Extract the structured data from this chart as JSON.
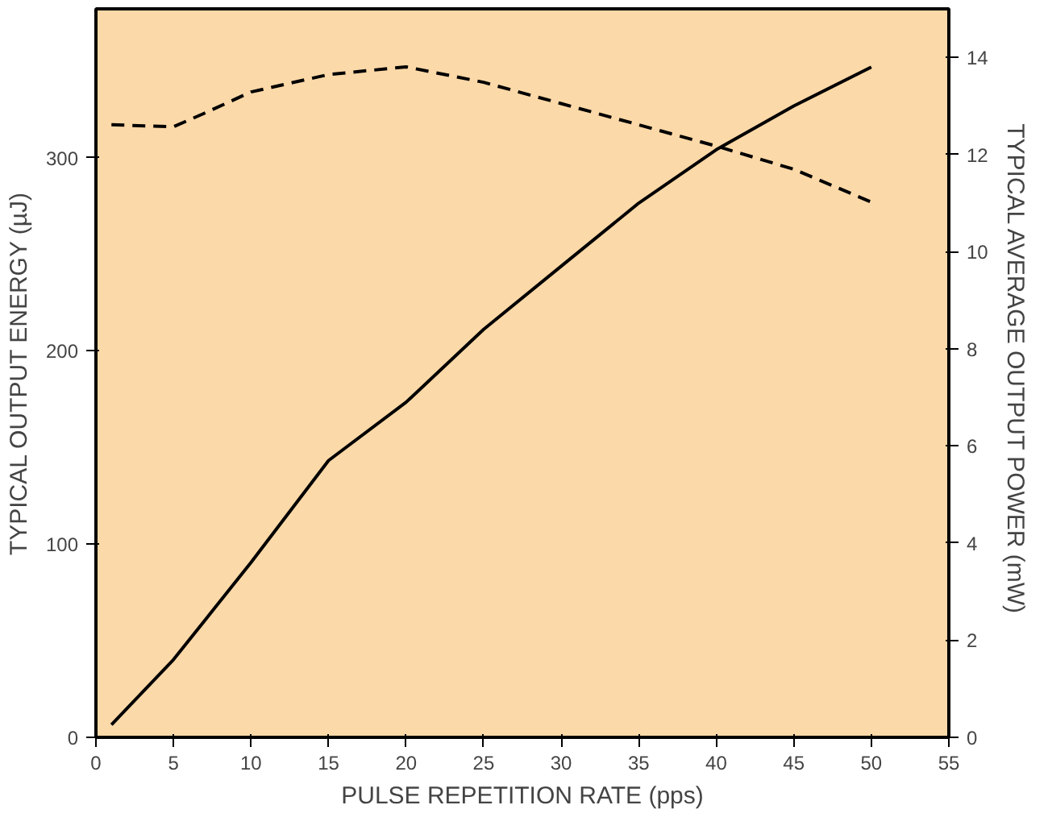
{
  "chart_data": {
    "type": "line",
    "xlabel": "PULSE REPETITION RATE (pps)",
    "ylabel": "TYPICAL OUTPUT ENERGY (µJ)",
    "y2label": "TYPICAL  AVERAGE OUTPUT POWER (mW)",
    "xlim": [
      0,
      55
    ],
    "xticks": [
      0,
      5,
      10,
      15,
      20,
      25,
      30,
      35,
      40,
      45,
      50,
      55
    ],
    "ylim": [
      0,
      377
    ],
    "yticks": [
      0,
      100,
      200,
      300
    ],
    "y2lim": [
      0,
      15
    ],
    "y2ticks": [
      0,
      2,
      4,
      6,
      8,
      10,
      12,
      14
    ],
    "grid": false,
    "series": [
      {
        "color": "#000000",
        "line_style": "dashed",
        "x": [
          1,
          5,
          7,
          10,
          15,
          20,
          25,
          30,
          35,
          40,
          45,
          50
        ],
        "values": [
          317,
          316,
          323,
          334,
          343,
          347,
          339,
          328,
          317,
          306,
          294,
          277
        ]
      },
      {
        "color": "#000000",
        "line_style": "solid",
        "axis": "y2",
        "x": [
          1,
          5,
          10,
          15,
          20,
          25,
          30,
          35,
          40,
          45,
          50
        ],
        "values": [
          0.26,
          1.6,
          3.6,
          5.7,
          6.9,
          8.4,
          9.7,
          11.0,
          12.1,
          13.0,
          13.8
        ]
      }
    ]
  }
}
